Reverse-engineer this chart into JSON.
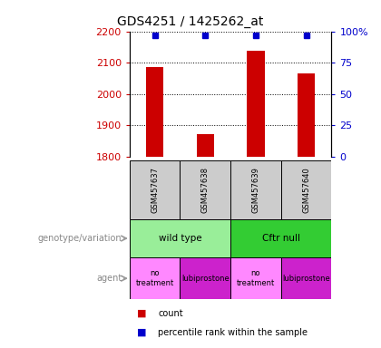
{
  "title": "GDS4251 / 1425262_at",
  "samples": [
    "GSM457637",
    "GSM457638",
    "GSM457639",
    "GSM457640"
  ],
  "counts": [
    2087,
    1872,
    2138,
    2065
  ],
  "percentiles": [
    97,
    97,
    97,
    97
  ],
  "ylim_left": [
    1800,
    2200
  ],
  "ylim_right": [
    0,
    100
  ],
  "yticks_left": [
    1800,
    1900,
    2000,
    2100,
    2200
  ],
  "yticks_right": [
    0,
    25,
    50,
    75,
    100
  ],
  "bar_color": "#cc0000",
  "dot_color": "#0000cc",
  "genotype_groups": [
    {
      "label": "wild type",
      "cols": [
        0,
        1
      ],
      "color": "#99ee99"
    },
    {
      "label": "Cftr null",
      "cols": [
        2,
        3
      ],
      "color": "#33cc33"
    }
  ],
  "agent_colors": [
    "#ff88ff",
    "#cc22cc",
    "#ff88ff",
    "#cc22cc"
  ],
  "agent_labels": [
    "no\ntreatment",
    "lubiprostone",
    "no\ntreatment",
    "lubiprostone"
  ],
  "left_label": "genotype/variation",
  "agent_label": "agent",
  "sample_bg": "#cccccc",
  "background_color": "#ffffff"
}
